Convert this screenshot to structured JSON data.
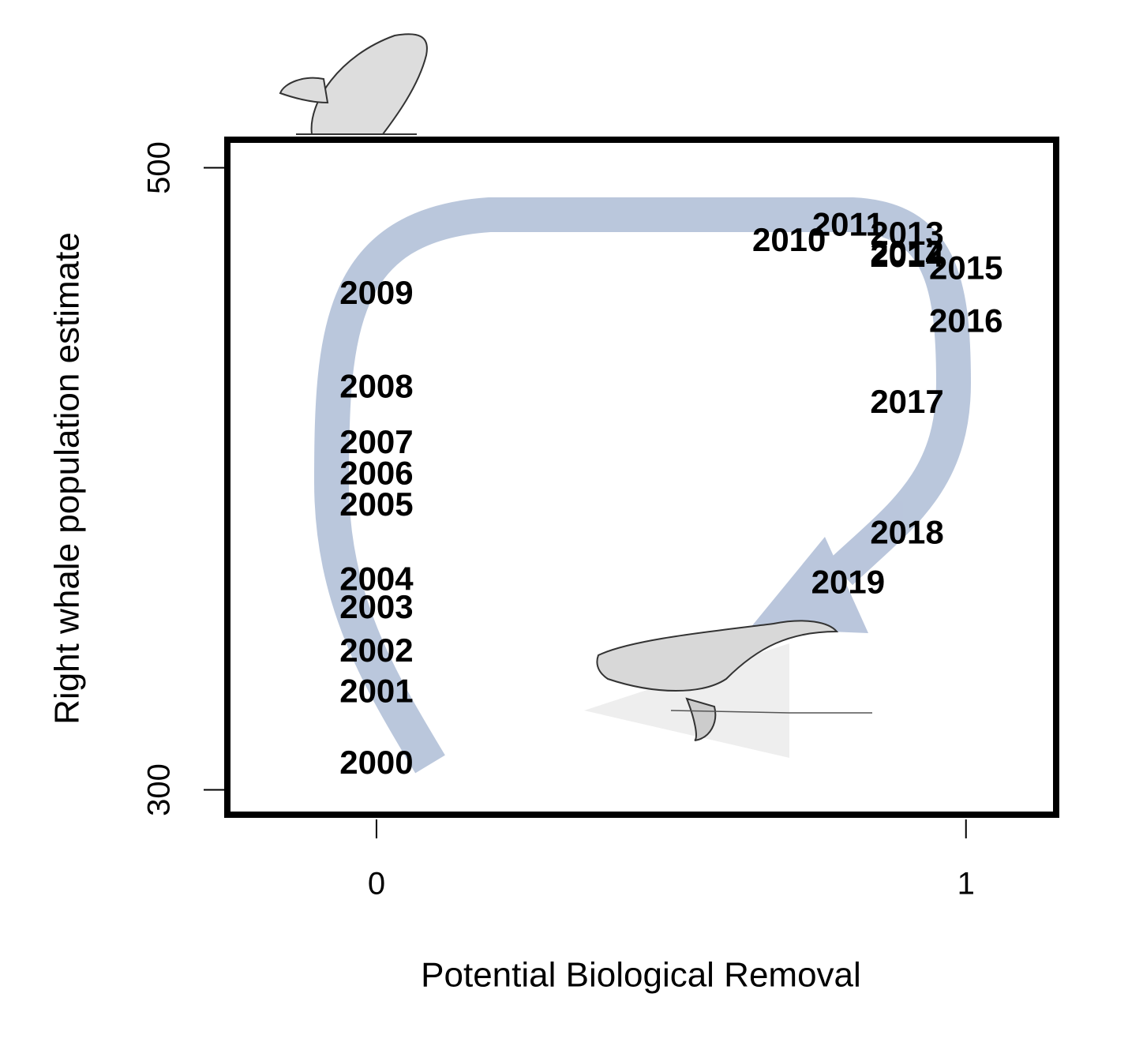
{
  "chart_data": {
    "type": "scatter",
    "xlabel": "Potential Biological Removal",
    "ylabel": "Right whale population estimate",
    "labels": [
      "2000",
      "2001",
      "2002",
      "2003",
      "2004",
      "2005",
      "2006",
      "2007",
      "2008",
      "2009",
      "2010",
      "2011",
      "2012",
      "2013",
      "2014",
      "2015",
      "2016",
      "2017",
      "2018",
      "2019"
    ],
    "x": [
      0,
      0,
      0,
      0,
      0,
      0,
      0,
      0,
      0,
      0,
      0.7,
      0.8,
      0.9,
      0.9,
      0.9,
      1,
      1,
      0.9,
      0.9,
      0.8
    ],
    "y": [
      308,
      331,
      344,
      358,
      367,
      391,
      401,
      411,
      429,
      459,
      476,
      481,
      472,
      478,
      471,
      467,
      450,
      424,
      382,
      366
    ],
    "color": "#000000",
    "xlim": [
      -0.253,
      1.153
    ],
    "ylim": [
      292,
      509
    ],
    "xticks": [
      0,
      1
    ],
    "yticks": [
      300,
      500
    ]
  }
}
